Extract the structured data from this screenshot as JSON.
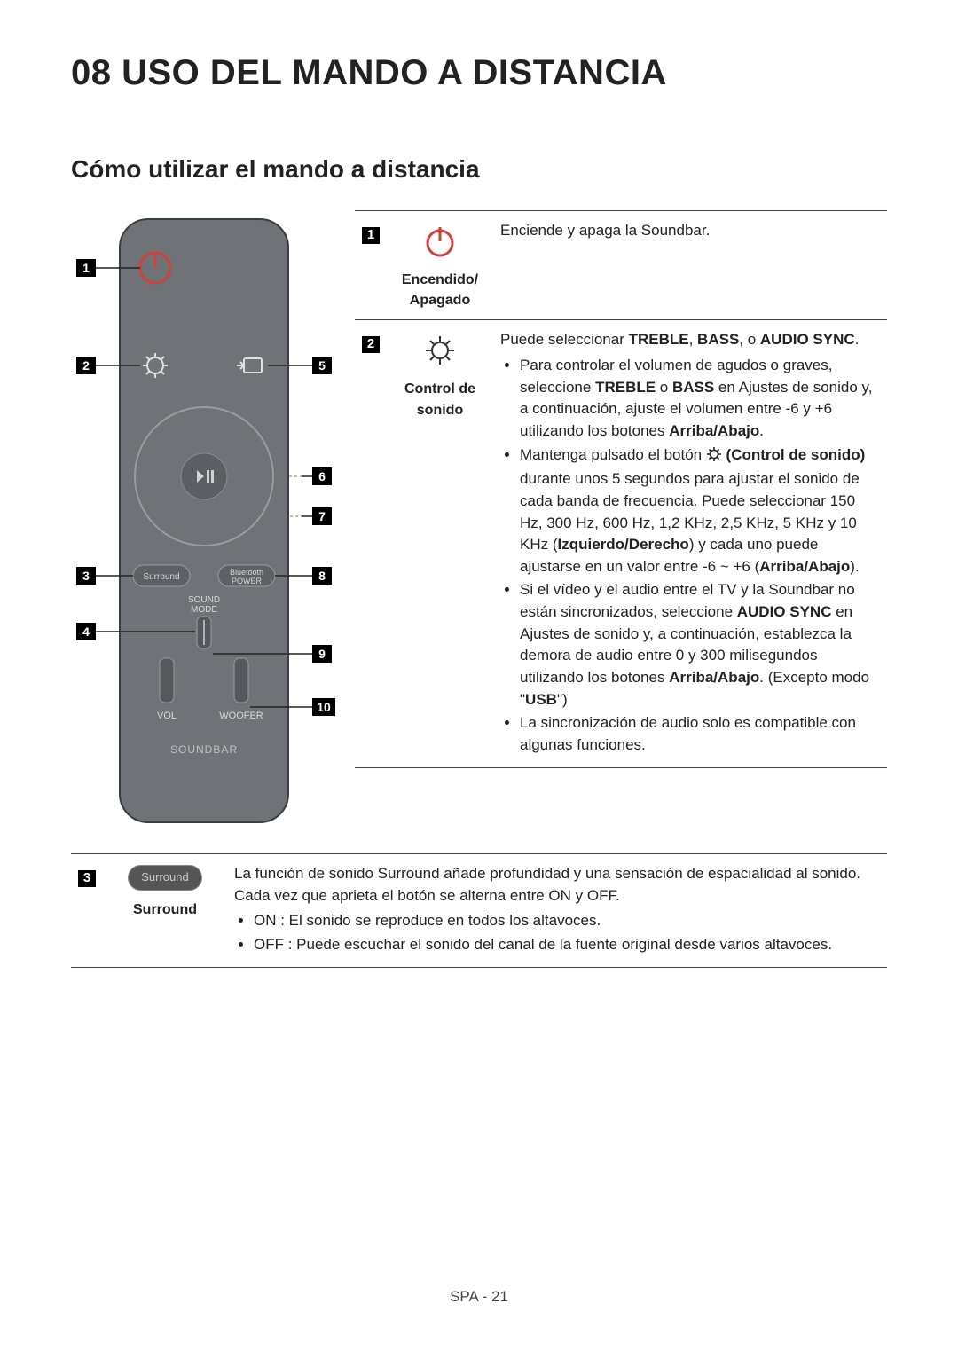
{
  "heading": "08  USO DEL MANDO A DISTANCIA",
  "subheading": "Cómo utilizar el mando a distancia",
  "remote": {
    "body_color": "#6f7276",
    "outline_color": "#4a4d50",
    "text_color": "#e0e0e0",
    "power_color": "#D0423B",
    "labels": {
      "surround": "Surround",
      "bluetooth_power": "Bluetooth\nPOWER",
      "sound_mode": "SOUND\nMODE",
      "vol": "VOL",
      "woofer": "WOOFER",
      "soundbar": "SOUNDBAR"
    },
    "callouts": [
      "1",
      "2",
      "3",
      "4",
      "5",
      "6",
      "7",
      "8",
      "9",
      "10"
    ]
  },
  "rows": [
    {
      "num": "1",
      "icon": "power",
      "icon_label": "Encendido/\nApagado",
      "desc_plain": "Enciende y apaga la Soundbar."
    },
    {
      "num": "2",
      "icon": "gear",
      "icon_label": "Control de\nsonido",
      "desc_intro_pre": "Puede seleccionar ",
      "desc_intro_bold": [
        "TREBLE",
        "BASS",
        "AUDIO SYNC"
      ],
      "bullets_2": [
        {
          "parts": [
            {
              "t": "Para controlar el volumen de agudos o graves, seleccione "
            },
            {
              "t": "TREBLE",
              "b": true
            },
            {
              "t": " o "
            },
            {
              "t": "BASS",
              "b": true
            },
            {
              "t": " en Ajustes de sonido y, a continuación, ajuste el volumen entre -6 y +6 utilizando los botones "
            },
            {
              "t": "Arriba/Abajo",
              "b": true
            },
            {
              "t": "."
            }
          ]
        },
        {
          "parts": [
            {
              "t": "Mantenga pulsado el botón "
            },
            {
              "icon": "gear"
            },
            {
              "t": " (Control de sonido)",
              "b": true
            },
            {
              "t": " durante unos 5 segundos para ajustar el sonido de cada banda de frecuencia. Puede seleccionar 150 Hz, 300 Hz, 600 Hz, 1,2 KHz, 2,5 KHz, 5 KHz y 10 KHz ("
            },
            {
              "t": "Izquierdo/Derecho",
              "b": true
            },
            {
              "t": ") y cada uno puede ajustarse en un valor entre -6 ~ +6 ("
            },
            {
              "t": "Arriba/Abajo",
              "b": true
            },
            {
              "t": ")."
            }
          ]
        },
        {
          "parts": [
            {
              "t": "Si el vídeo y el audio entre el TV y la Soundbar no están sincronizados, seleccione "
            },
            {
              "t": "AUDIO SYNC",
              "b": true
            },
            {
              "t": " en Ajustes de sonido y, a continuación, establezca la demora de audio entre 0 y 300 milisegundos utilizando los botones "
            },
            {
              "t": "Arriba/Abajo",
              "b": true
            },
            {
              "t": ". (Excepto modo \""
            },
            {
              "t": "USB",
              "b": true
            },
            {
              "t": "\")"
            }
          ]
        },
        {
          "parts": [
            {
              "t": "La sincronización de audio solo es compatible con algunas funciones."
            }
          ]
        }
      ]
    }
  ],
  "bottom_row": {
    "num": "3",
    "icon_label": "Surround",
    "desc_intro": "La función de sonido Surround añade profundidad y una sensación de espacialidad al sonido.",
    "desc_line2": "Cada vez que aprieta el botón se alterna entre ON y OFF.",
    "bullets": [
      "ON : El sonido se reproduce en todos los altavoces.",
      "OFF : Puede escuchar el sonido del canal de la fuente original desde varios altavoces."
    ]
  },
  "footer": "SPA - 21",
  "colors": {
    "text": "#222222",
    "border": "#444444",
    "badge_bg": "#000000",
    "badge_fg": "#ffffff"
  }
}
